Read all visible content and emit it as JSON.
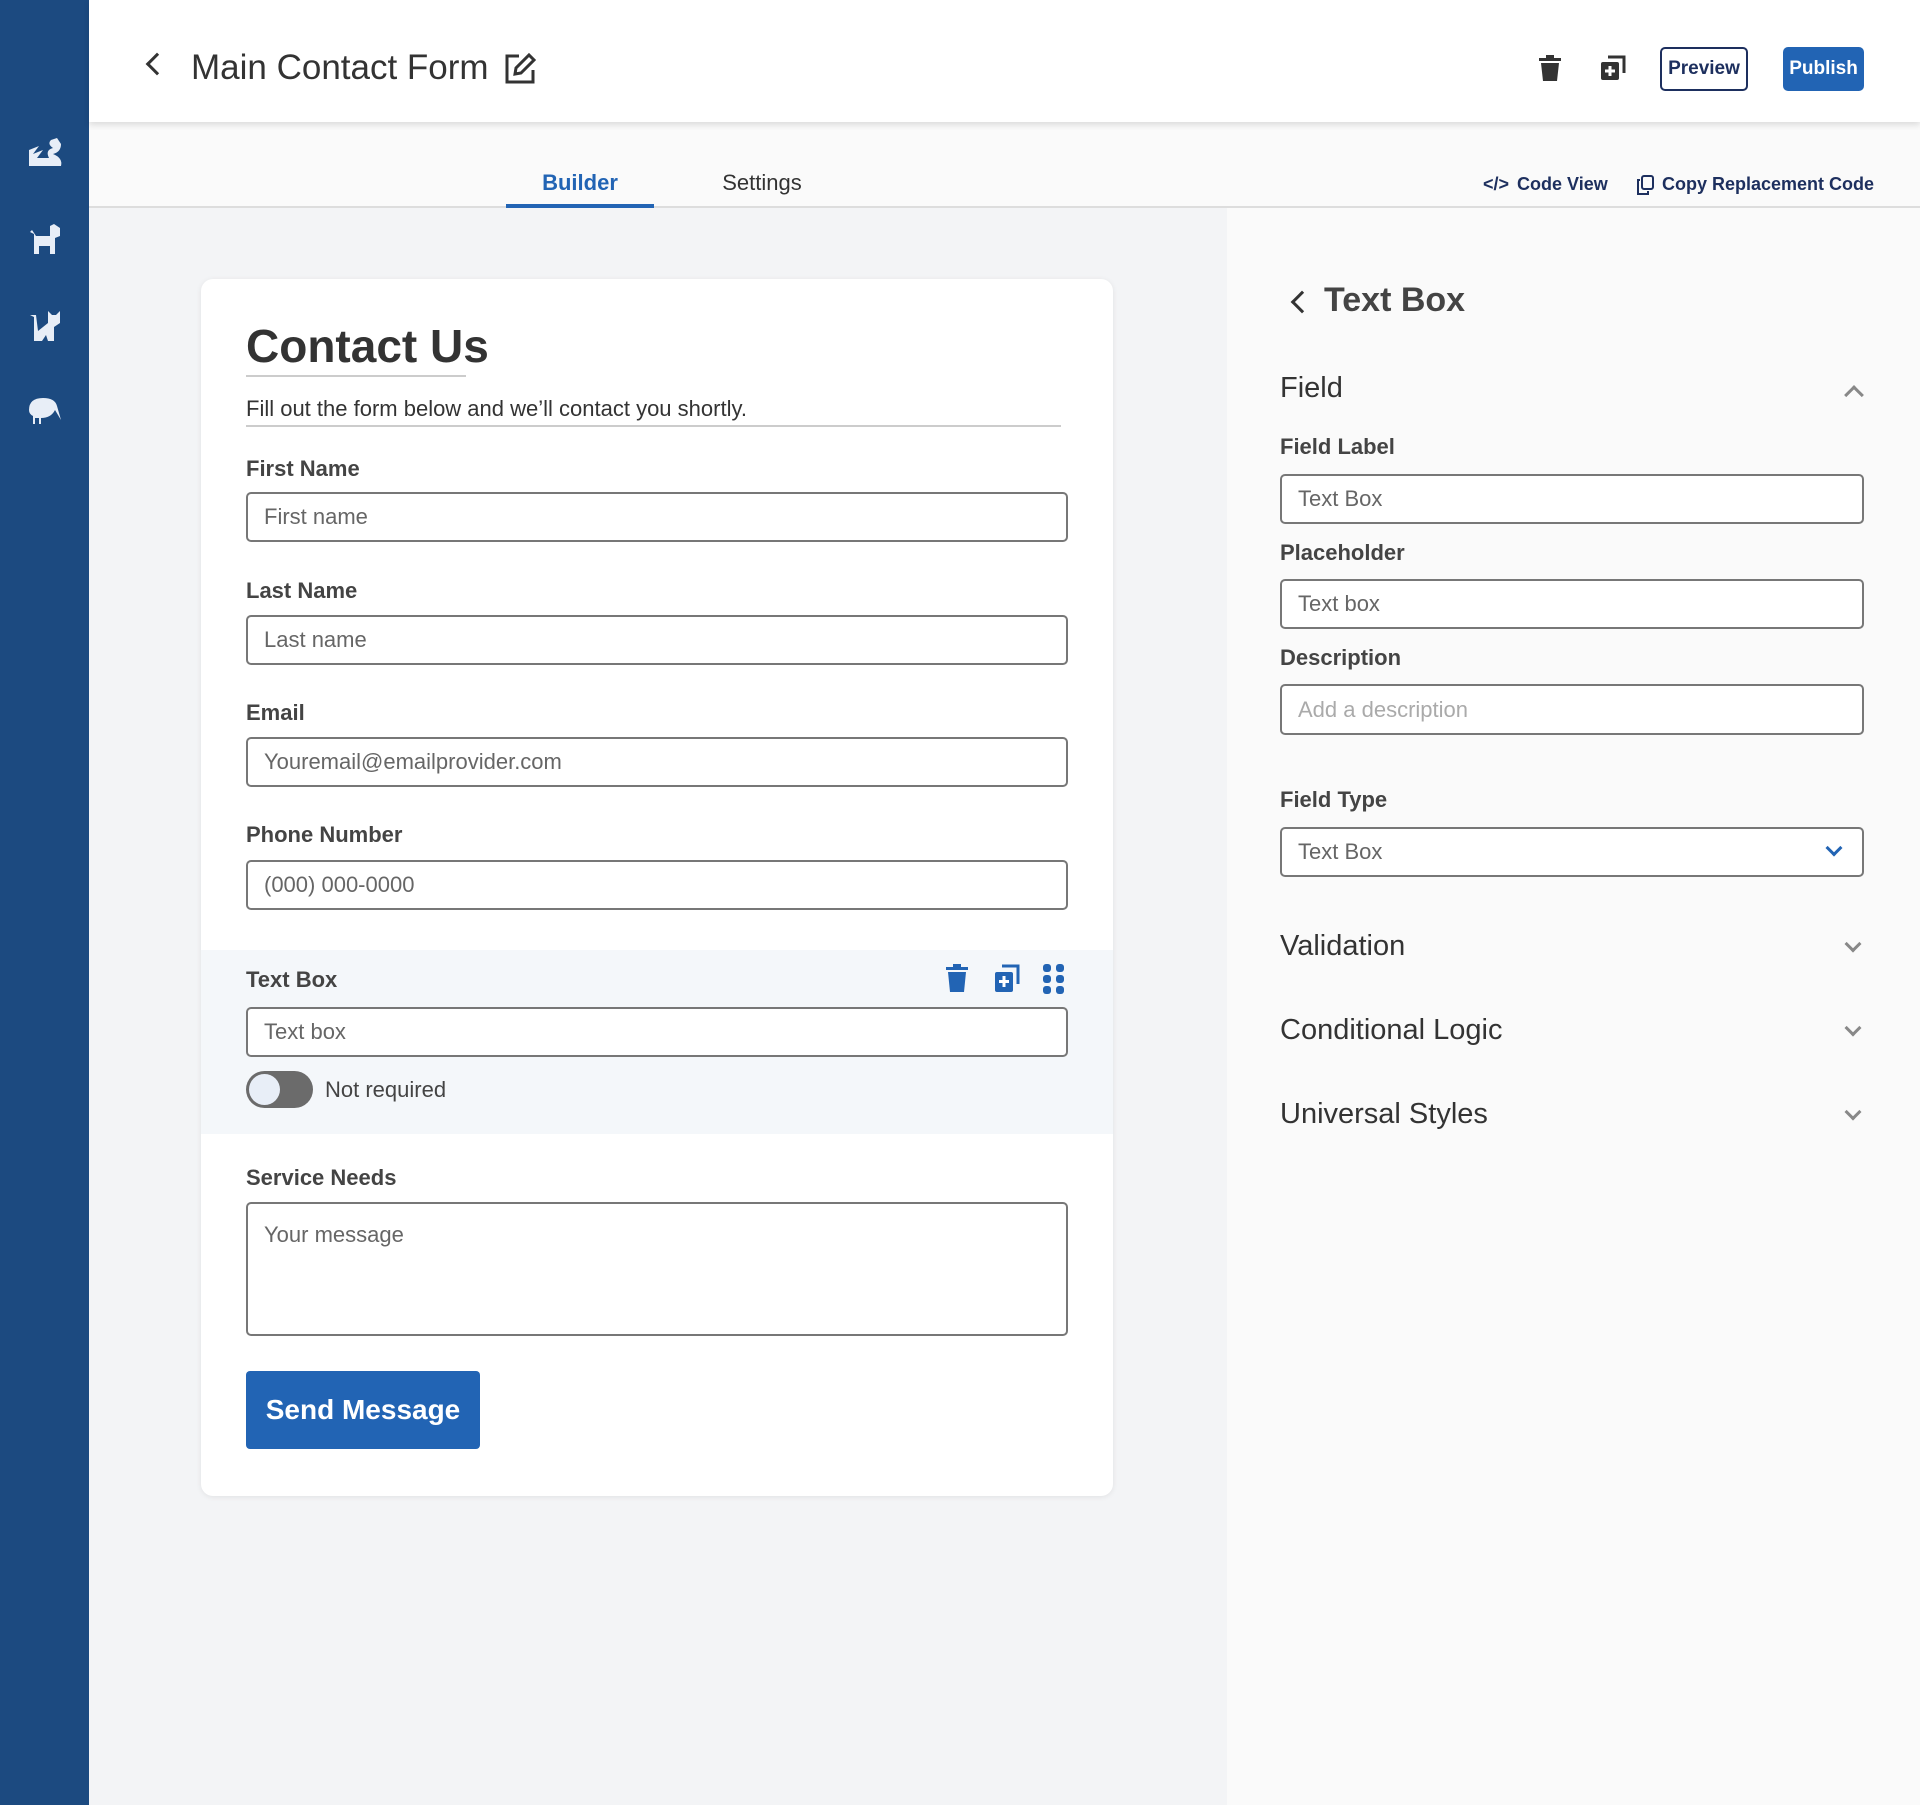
{
  "sidebar": {
    "icons": [
      "dragon-icon",
      "dog-icon",
      "cat-icon",
      "kiwi-bird-icon"
    ]
  },
  "header": {
    "title": "Main Contact Form",
    "preview_label": "Preview",
    "publish_label": "Publish"
  },
  "tabs": [
    {
      "label": "Builder",
      "active": true
    },
    {
      "label": "Settings",
      "active": false
    }
  ],
  "toolbar": {
    "code_view": "Code View",
    "copy_code": "Copy Replacement Code"
  },
  "colors": {
    "sidebar": "#1c4a80",
    "accent": "#2264b4",
    "preview_border": "#1d2f5e"
  },
  "form": {
    "title": "Contact Us",
    "subtitle": "Fill out the form below and we’ll contact you shortly.",
    "fields": [
      {
        "label": "First Name",
        "placeholder": "First name"
      },
      {
        "label": "Last Name",
        "placeholder": "Last name"
      },
      {
        "label": "Email",
        "placeholder": "Youremail@emailprovider.com"
      },
      {
        "label": "Phone Number",
        "placeholder": "(000) 000-0000"
      }
    ],
    "selected_field": {
      "label": "Text Box",
      "placeholder": "Text box",
      "required_label": "Not required",
      "required": false
    },
    "message": {
      "label": "Service Needs",
      "placeholder": "Your message"
    },
    "submit_label": "Send Message"
  },
  "panel": {
    "title": "Text Box",
    "field_section": "Field",
    "field_label_label": "Field Label",
    "field_label_value": "Text Box",
    "placeholder_label": "Placeholder",
    "placeholder_value": "Text box",
    "description_label": "Description",
    "description_placeholder": "Add a description",
    "field_type_label": "Field Type",
    "field_type_value": "Text Box",
    "sections": [
      "Validation",
      "Conditional Logic",
      "Universal Styles"
    ]
  }
}
